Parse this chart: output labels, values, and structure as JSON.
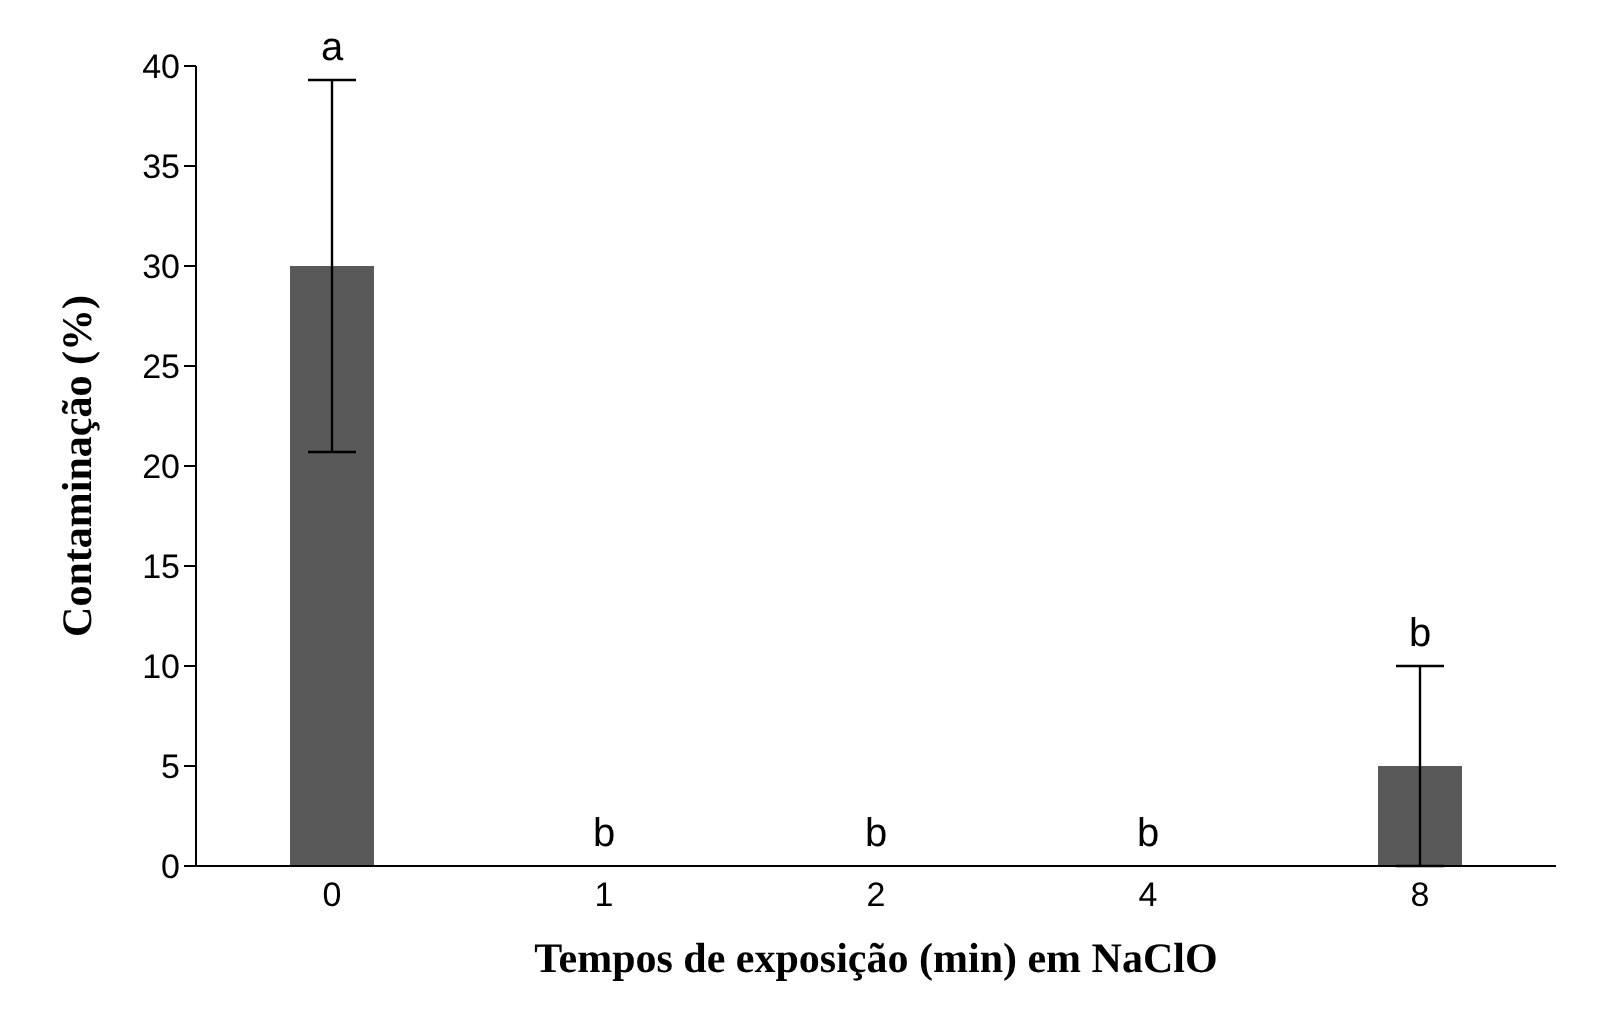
{
  "chart_data": {
    "type": "bar",
    "xlabel": "Tempos de exposição (min) em NaClO",
    "ylabel": "Contaminação (%)",
    "categories": [
      "0",
      "1",
      "2",
      "4",
      "8"
    ],
    "values": [
      30,
      0,
      0,
      0,
      5
    ],
    "errors": [
      9.3,
      null,
      null,
      null,
      5
    ],
    "color": "#595959",
    "ylim": [
      0,
      40
    ],
    "yticks": [
      0,
      5,
      10,
      15,
      20,
      25,
      30,
      35,
      40
    ],
    "grid": false,
    "legend": false,
    "annotations": [
      {
        "text": "a",
        "x": "0",
        "y": 39.3
      },
      {
        "text": "b",
        "x": "1",
        "y": 0
      },
      {
        "text": "b",
        "x": "2",
        "y": 0
      },
      {
        "text": "b",
        "x": "4",
        "y": 0
      },
      {
        "text": "b",
        "x": "8",
        "y": 10
      }
    ]
  }
}
